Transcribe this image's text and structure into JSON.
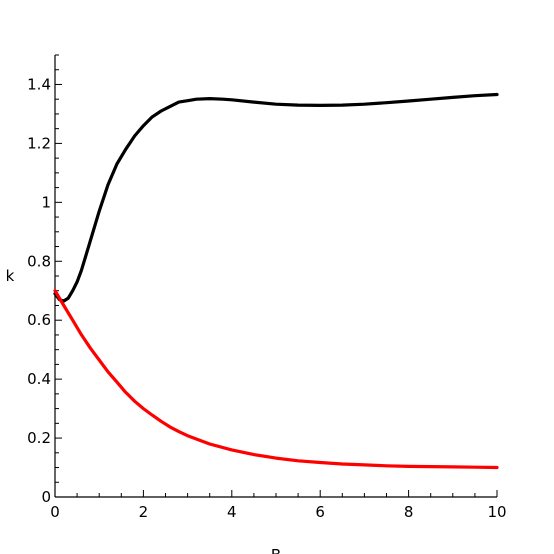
{
  "chart_data": {
    "type": "line",
    "xlabel": "B",
    "ylabel": "k",
    "xlim": [
      0,
      10
    ],
    "ylim": [
      0,
      1.5
    ],
    "x_ticks": [
      0,
      2,
      4,
      6,
      8,
      10
    ],
    "x_tick_labels": [
      "0",
      "2",
      "4",
      "6",
      "8",
      "10"
    ],
    "y_ticks": [
      0,
      0.2,
      0.4,
      0.6,
      0.8,
      1,
      1.2,
      1.4
    ],
    "y_tick_labels": [
      "0",
      "0.2",
      "0.4",
      "0.6",
      "0.8",
      "1",
      "1.2",
      "1.4"
    ],
    "x_minor_step": 0.5,
    "y_minor_step": 0.05,
    "grid": false,
    "legend": "none",
    "series": [
      {
        "color": "#000000",
        "x": [
          0,
          0.1,
          0.2,
          0.3,
          0.4,
          0.5,
          0.6,
          0.8,
          1.0,
          1.2,
          1.4,
          1.6,
          1.8,
          2.0,
          2.2,
          2.4,
          2.6,
          2.8,
          3.0,
          3.2,
          3.5,
          3.8,
          4.0,
          4.5,
          5.0,
          5.5,
          6.0,
          6.5,
          7.0,
          7.5,
          8.0,
          8.5,
          9.0,
          9.5,
          10.0
        ],
        "y": [
          0.69,
          0.67,
          0.665,
          0.675,
          0.7,
          0.73,
          0.77,
          0.87,
          0.97,
          1.06,
          1.13,
          1.18,
          1.225,
          1.26,
          1.29,
          1.31,
          1.325,
          1.34,
          1.345,
          1.35,
          1.352,
          1.35,
          1.348,
          1.34,
          1.333,
          1.33,
          1.329,
          1.33,
          1.333,
          1.338,
          1.344,
          1.35,
          1.356,
          1.362,
          1.366
        ]
      },
      {
        "color": "#ff0000",
        "x": [
          0,
          0.2,
          0.4,
          0.6,
          0.8,
          1.0,
          1.2,
          1.4,
          1.6,
          1.8,
          2.0,
          2.2,
          2.4,
          2.6,
          2.8,
          3.0,
          3.5,
          4.0,
          4.5,
          5.0,
          5.5,
          6.0,
          6.5,
          7.0,
          7.5,
          8.0,
          8.5,
          9.0,
          9.5,
          10.0
        ],
        "y": [
          0.7,
          0.65,
          0.6,
          0.55,
          0.505,
          0.465,
          0.425,
          0.39,
          0.355,
          0.325,
          0.3,
          0.278,
          0.257,
          0.238,
          0.222,
          0.208,
          0.18,
          0.16,
          0.144,
          0.132,
          0.123,
          0.117,
          0.112,
          0.109,
          0.106,
          0.104,
          0.103,
          0.102,
          0.101,
          0.1
        ]
      }
    ]
  }
}
